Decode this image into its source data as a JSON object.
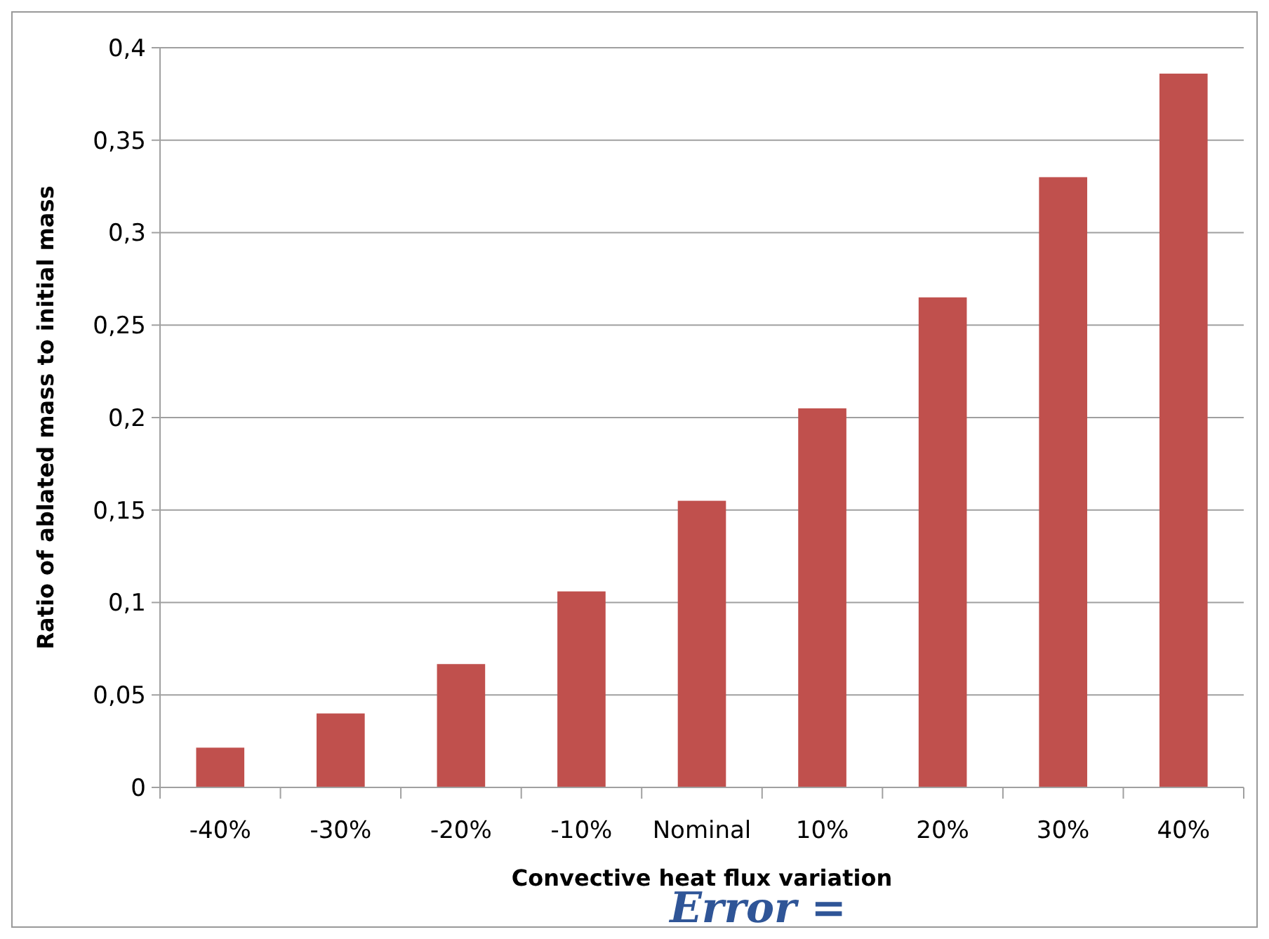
{
  "chart_data": {
    "type": "bar",
    "xlabel": "Convective heat flux variation",
    "ylabel": "Ratio of ablated mass to initial mass",
    "categories": [
      "-40%",
      "-30%",
      "-20%",
      "-10%",
      "Nominal",
      "10%",
      "20%",
      "30%",
      "40%"
    ],
    "values": [
      0.0215,
      0.04,
      0.0667,
      0.106,
      0.155,
      0.205,
      0.265,
      0.33,
      0.386
    ],
    "color": "#c0504d",
    "ylim": [
      0,
      0.4
    ],
    "yticks": [
      0,
      {
        "value": 0.05,
        "label": "0,05"
      },
      {
        "value": 0.1,
        "label": "0,1"
      },
      {
        "value": 0.15,
        "label": "0,15"
      },
      {
        "value": 0.2,
        "label": "0,2"
      },
      {
        "value": 0.25,
        "label": "0,25"
      },
      {
        "value": 0.3,
        "label": "0,3"
      },
      {
        "value": 0.35,
        "label": "0,35"
      },
      {
        "value": 0.4,
        "label": "0,4"
      }
    ],
    "grid": "y",
    "annotations": [
      "Error ="
    ]
  }
}
